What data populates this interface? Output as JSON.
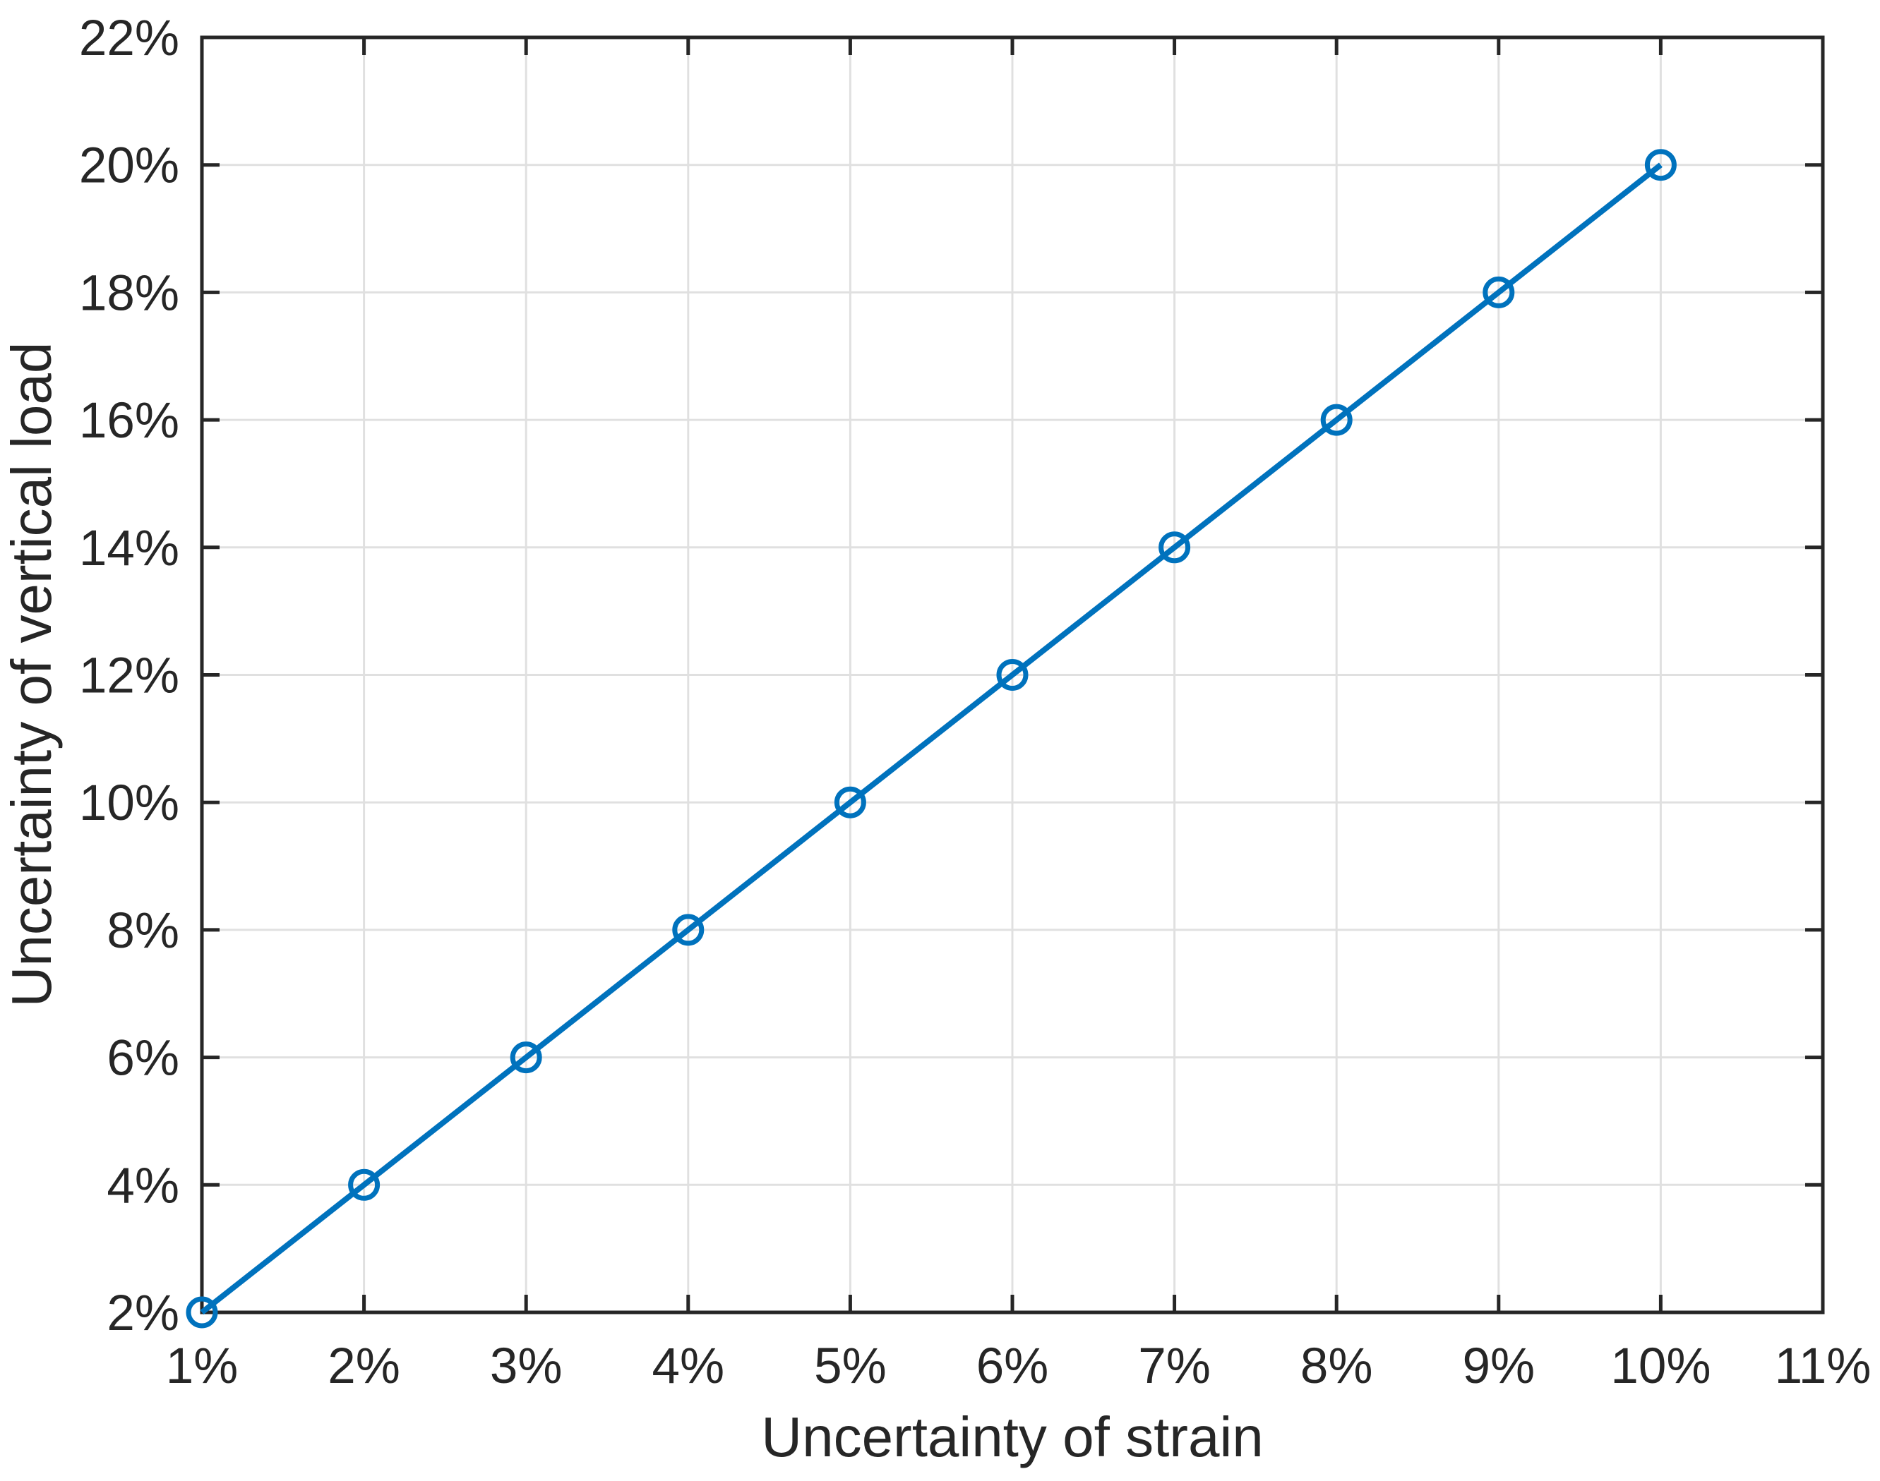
{
  "chart_data": {
    "type": "line",
    "title": "",
    "xlabel": "Uncertainty of strain",
    "ylabel": "Uncertainty of vertical load",
    "xlim": [
      1,
      11
    ],
    "ylim": [
      2,
      22
    ],
    "x_tick_values": [
      1,
      2,
      3,
      4,
      5,
      6,
      7,
      8,
      9,
      10,
      11
    ],
    "x_tick_labels": [
      "1%",
      "2%",
      "3%",
      "4%",
      "5%",
      "6%",
      "7%",
      "8%",
      "9%",
      "10%",
      "11%"
    ],
    "y_tick_values": [
      2,
      4,
      6,
      8,
      10,
      12,
      14,
      16,
      18,
      20,
      22
    ],
    "y_tick_labels": [
      "2%",
      "4%",
      "6%",
      "8%",
      "10%",
      "12%",
      "14%",
      "16%",
      "18%",
      "20%",
      "22%"
    ],
    "grid": true,
    "legend": false,
    "series": [
      {
        "name": "uncertainty-of-vertical-load-vs-strain",
        "marker": "open-circle",
        "x": [
          1,
          2,
          3,
          4,
          5,
          6,
          7,
          8,
          9,
          10
        ],
        "y": [
          2,
          4,
          6,
          8,
          10,
          12,
          14,
          16,
          18,
          20
        ]
      }
    ],
    "colors": {
      "line": "#0072BD",
      "grid": "#E0E0E0",
      "axis": "#262626",
      "background": "#FFFFFF"
    }
  }
}
